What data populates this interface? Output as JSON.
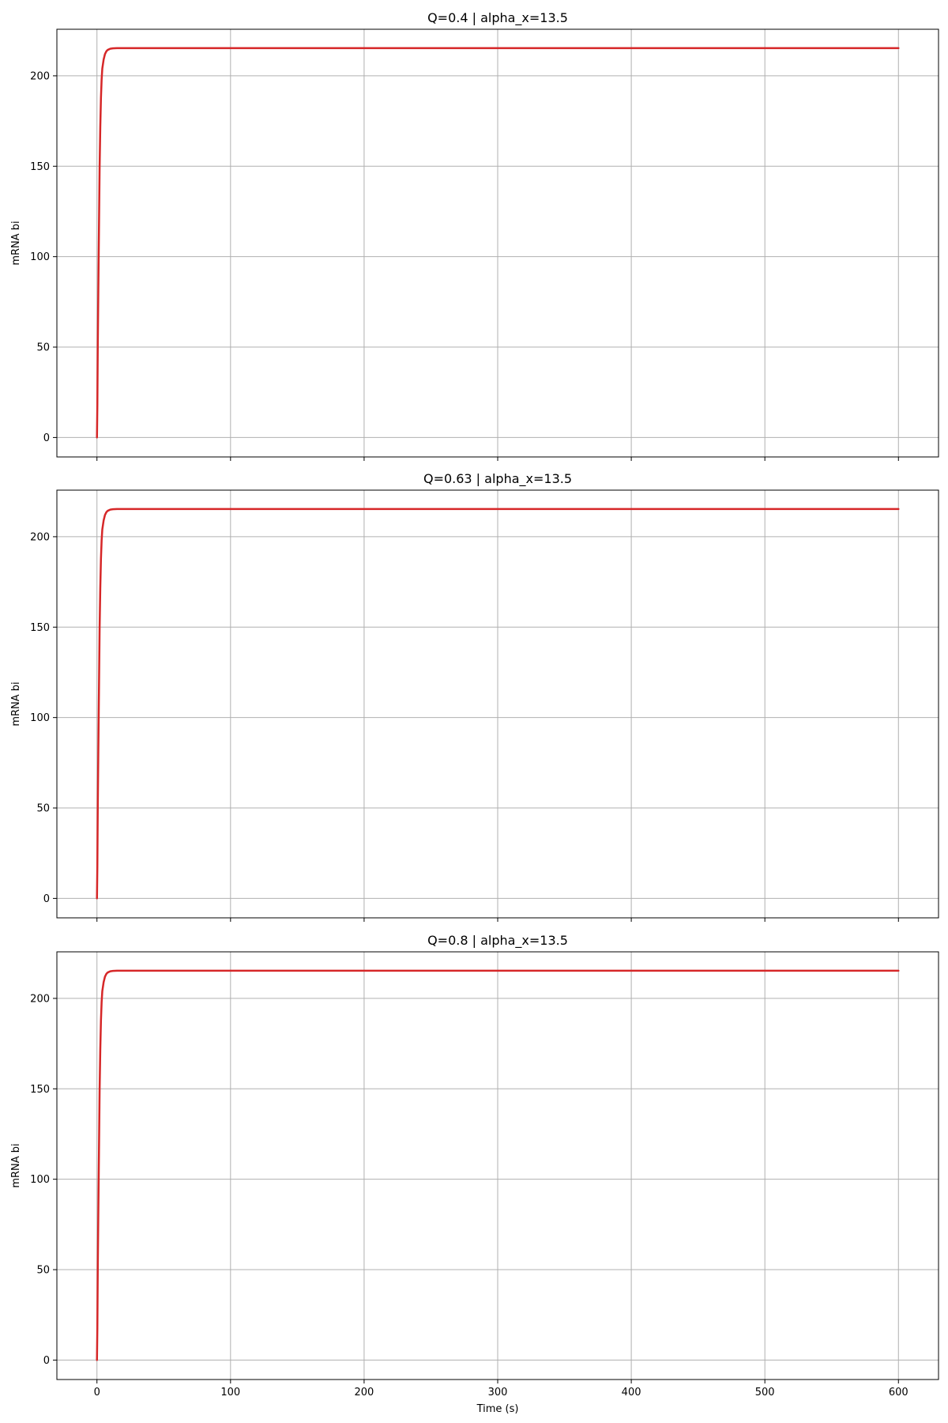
{
  "colors": {
    "series": "#d62728",
    "grid": "#b0b0b0"
  },
  "chart_data": [
    {
      "type": "line",
      "title": "Q=0.4 | alpha_x=13.5",
      "xlabel": "",
      "ylabel": "mRNA bi",
      "xlim": [
        -30,
        630
      ],
      "ylim": [
        -10.75,
        225.75
      ],
      "xticks": [
        0,
        100,
        200,
        300,
        400,
        500,
        600
      ],
      "xticklabels": [],
      "yticks": [
        0,
        50,
        100,
        150,
        200
      ],
      "yticklabels": [
        "0",
        "50",
        "100",
        "150",
        "200"
      ],
      "grid": true,
      "series": [
        {
          "x": [
            0,
            0.3,
            0.6,
            1,
            1.5,
            2,
            2.5,
            3,
            3.5,
            4,
            5,
            6,
            7,
            8,
            10,
            12,
            15,
            600
          ],
          "y": [
            0,
            18,
            50,
            80,
            115,
            150,
            172,
            188,
            198,
            204,
            209,
            212,
            213.5,
            214.3,
            215,
            215.2,
            215.3,
            215.3
          ]
        }
      ]
    },
    {
      "type": "line",
      "title": "Q=0.63 | alpha_x=13.5",
      "xlabel": "",
      "ylabel": "mRNA bi",
      "xlim": [
        -30,
        630
      ],
      "ylim": [
        -10.75,
        225.75
      ],
      "xticks": [
        0,
        100,
        200,
        300,
        400,
        500,
        600
      ],
      "xticklabels": [],
      "yticks": [
        0,
        50,
        100,
        150,
        200
      ],
      "yticklabels": [
        "0",
        "50",
        "100",
        "150",
        "200"
      ],
      "grid": true,
      "series": [
        {
          "x": [
            0,
            0.3,
            0.6,
            1,
            1.5,
            2,
            2.5,
            3,
            3.5,
            4,
            5,
            6,
            7,
            8,
            10,
            12,
            15,
            600
          ],
          "y": [
            0,
            18,
            50,
            80,
            115,
            150,
            172,
            188,
            198,
            204,
            209,
            212,
            213.5,
            214.3,
            215,
            215.2,
            215.3,
            215.3
          ]
        }
      ]
    },
    {
      "type": "line",
      "title": "Q=0.8 | alpha_x=13.5",
      "xlabel": "Time (s)",
      "ylabel": "mRNA bi",
      "xlim": [
        -30,
        630
      ],
      "ylim": [
        -10.75,
        225.75
      ],
      "xticks": [
        0,
        100,
        200,
        300,
        400,
        500,
        600
      ],
      "xticklabels": [
        "0",
        "100",
        "200",
        "300",
        "400",
        "500",
        "600"
      ],
      "yticks": [
        0,
        50,
        100,
        150,
        200
      ],
      "yticklabels": [
        "0",
        "50",
        "100",
        "150",
        "200"
      ],
      "grid": true,
      "series": [
        {
          "x": [
            0,
            0.3,
            0.6,
            1,
            1.5,
            2,
            2.5,
            3,
            3.5,
            4,
            5,
            6,
            7,
            8,
            10,
            12,
            15,
            600
          ],
          "y": [
            0,
            18,
            50,
            80,
            115,
            150,
            172,
            188,
            198,
            204,
            209,
            212,
            213.5,
            214.3,
            215,
            215.2,
            215.3,
            215.3
          ]
        }
      ]
    }
  ]
}
